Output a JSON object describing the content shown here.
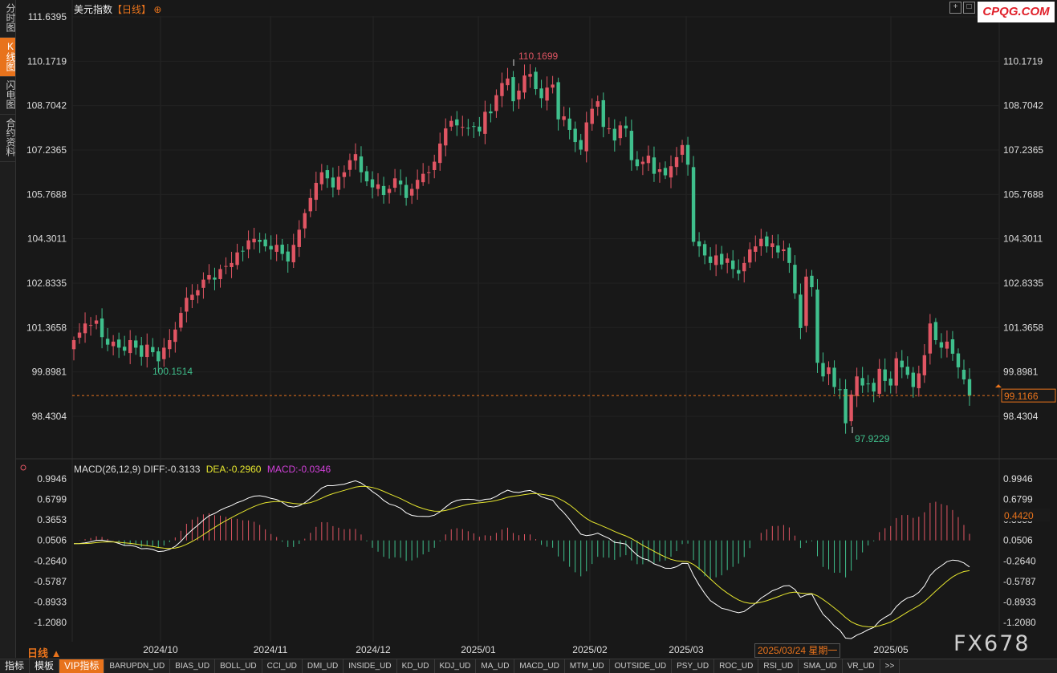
{
  "sidebar": {
    "tabs": [
      {
        "label": "分时图",
        "active": false
      },
      {
        "label": "K线图",
        "active": true
      },
      {
        "label": "闪电图",
        "active": false
      },
      {
        "label": "合约资料",
        "active": false
      }
    ]
  },
  "header": {
    "symbol": "美元指数",
    "period": "【日线】",
    "settings_glyph": "⊕"
  },
  "watermark": "CPQG.COM",
  "brand": "FX678",
  "period_label": "日线 ▲",
  "hover_date": "2025/03/24 星期一",
  "macd_legend": {
    "title": "MACD(26,12,9)",
    "diff": "DIFF:-0.3133",
    "dea": "DEA:-0.2960",
    "macd": "MACD:-0.0346"
  },
  "bottom_bar": {
    "items": [
      "指标",
      "模板",
      "VIP指标",
      "BARUPDN_UD",
      "BIAS_UD",
      "BOLL_UD",
      "CCI_UD",
      "DMI_UD",
      "INSIDE_UD",
      "KD_UD",
      "KDJ_UD",
      "MA_UD",
      "MACD_UD",
      "MTM_UD",
      "OUTSIDE_UD",
      "PSY_UD",
      "ROC_UD",
      "RSI_UD",
      "SMA_UD",
      "VR_UD",
      ">>"
    ]
  },
  "colors": {
    "up": "#e05563",
    "down": "#3fbf8c",
    "diff": "#ffffff",
    "dea": "#e6e62e",
    "accent": "#e8731c"
  },
  "chart_data": [
    {
      "type": "candlestick",
      "title": "美元指数",
      "ylim": [
        97.5,
        111.7
      ],
      "y_ticks": [
        "111.6395",
        "110.1719",
        "108.7042",
        "107.2365",
        "105.7688",
        "104.3011",
        "102.8335",
        "101.3658",
        "99.8981",
        "98.4304"
      ],
      "x_ticks": [
        "2024/10",
        "2024/11",
        "2024/12",
        "2025/01",
        "2025/02",
        "2025/03",
        "2025/05"
      ],
      "annotations": {
        "high": "110.1699",
        "low": "97.9229",
        "local_low": "100.1514",
        "last_price": "99.1166"
      },
      "close_series": [
        100.95,
        101.2,
        101.5,
        101.45,
        101.6,
        101.05,
        100.8,
        100.9,
        100.7,
        100.6,
        100.95,
        100.7,
        100.4,
        100.8,
        100.55,
        100.25,
        100.7,
        100.95,
        101.3,
        101.85,
        102.35,
        102.45,
        102.6,
        102.95,
        103.1,
        102.95,
        103.3,
        103.4,
        103.5,
        103.85,
        103.9,
        104.25,
        104.3,
        104.2,
        104.05,
        103.95,
        104.1,
        103.8,
        103.55,
        104.1,
        104.6,
        105.15,
        105.65,
        106.15,
        106.5,
        106.3,
        106.0,
        106.35,
        106.5,
        106.9,
        107.1,
        106.5,
        106.2,
        106.0,
        106.1,
        105.75,
        105.95,
        106.3,
        106.1,
        105.65,
        105.95,
        106.25,
        106.45,
        106.5,
        106.85,
        107.45,
        107.95,
        108.2,
        108.05,
        108.0,
        107.95,
        108.0,
        107.85,
        108.5,
        108.45,
        109.05,
        109.45,
        109.6,
        108.85,
        109.2,
        109.7,
        109.75,
        109.25,
        108.95,
        109.3,
        109.4,
        108.25,
        108.35,
        107.9,
        107.5,
        107.25,
        108.15,
        108.6,
        108.85,
        108.0,
        107.95,
        107.55,
        108.05,
        107.95,
        106.9,
        106.7,
        106.85,
        107.05,
        106.45,
        106.6,
        106.4,
        106.7,
        107.0,
        107.4,
        106.75,
        104.2,
        104.05,
        103.75,
        103.5,
        103.75,
        103.45,
        103.65,
        103.3,
        103.15,
        103.5,
        103.95,
        104.05,
        104.3,
        104.05,
        104.15,
        103.85,
        103.95,
        103.5,
        102.5,
        101.35,
        103.05,
        102.7,
        100.2,
        99.75,
        100.05,
        99.4,
        99.3,
        98.2,
        99.15,
        99.75,
        99.45,
        99.5,
        99.25,
        100.0,
        99.6,
        99.45,
        100.35,
        100.05,
        99.8,
        99.4,
        99.85,
        100.45,
        101.5,
        100.95,
        100.7,
        100.9,
        100.5,
        100.05,
        99.65,
        99.1166
      ]
    },
    {
      "type": "macd",
      "parameters": "MACD(26,12,9)",
      "ylim": [
        -1.45,
        1.05
      ],
      "y_ticks": [
        "0.9946",
        "0.6799",
        "0.3653",
        "0.0506",
        "-0.2640",
        "-0.5787",
        "-0.8933",
        "-1.2080"
      ],
      "current": {
        "diff": -0.3133,
        "dea": -0.296,
        "macd": -0.0346,
        "marker": "0.4420"
      }
    }
  ]
}
